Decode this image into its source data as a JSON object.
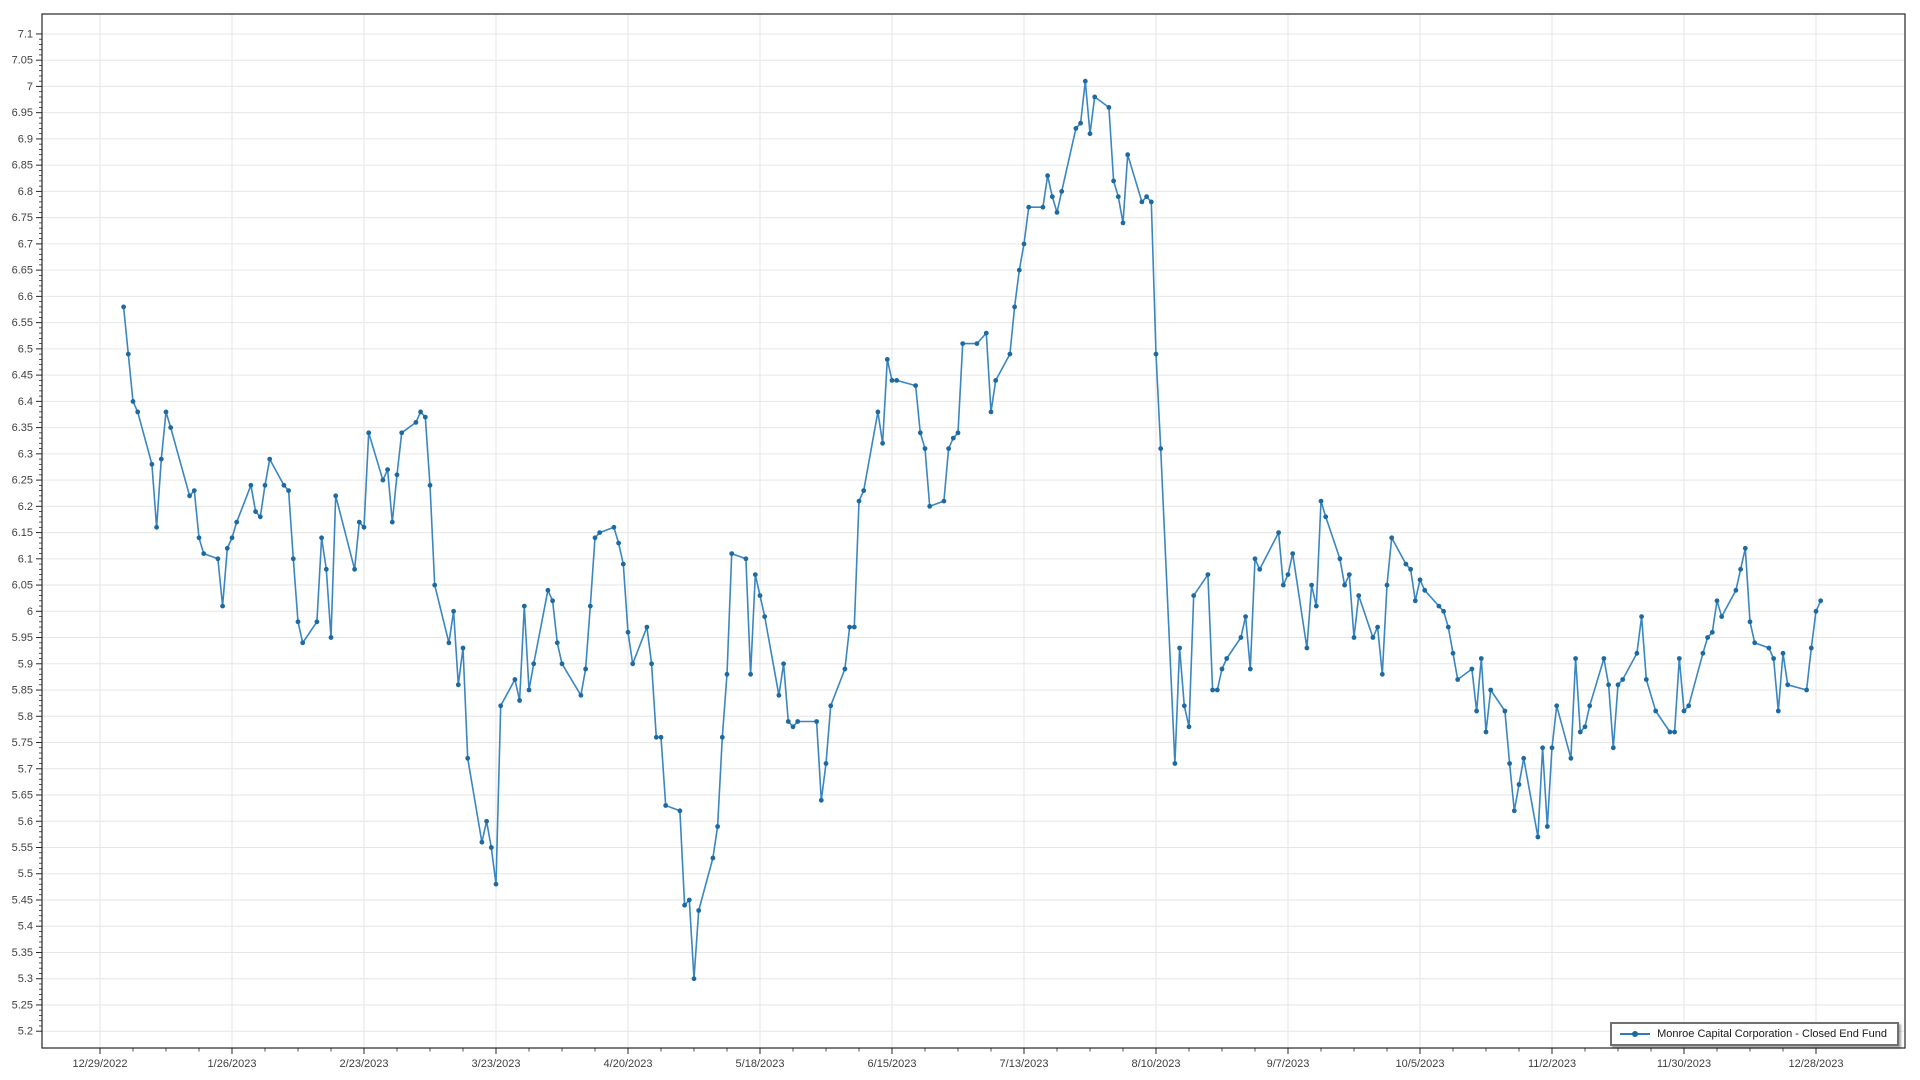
{
  "chart_data": {
    "type": "line",
    "title": "",
    "xlabel": "",
    "ylabel": "",
    "grid": true,
    "y_axis": {
      "tick_min": 5.2,
      "tick_max": 7.1,
      "tick_step": 0.05,
      "view_min": 5.168,
      "view_max": 7.138
    },
    "x_axis": {
      "origin_date": "2022-12-29",
      "tick_interval_days": 28,
      "minor_tick_interval_days": 7,
      "tick_labels": [
        "12/29/2022",
        "1/26/2023",
        "2/23/2023",
        "3/23/2023",
        "4/20/2023",
        "5/18/2023",
        "6/15/2023",
        "7/13/2023",
        "8/10/2023",
        "9/7/2023",
        "10/5/2023",
        "11/2/2023",
        "11/30/2023",
        "12/28/2023"
      ]
    },
    "legend": {
      "position": "bottom-right",
      "entries": [
        {
          "label": "Monroe Capital Corporation - Closed End Fund",
          "color": "#2e7cb8"
        }
      ]
    },
    "series": [
      {
        "name": "Monroe Capital Corporation - Closed End Fund",
        "line_color": "#3a86c2",
        "marker_color": "#1c6aa2",
        "points": [
          [
            "2023-01-03",
            6.58
          ],
          [
            "2023-01-04",
            6.49
          ],
          [
            "2023-01-05",
            6.4
          ],
          [
            "2023-01-06",
            6.38
          ],
          [
            "2023-01-09",
            6.28
          ],
          [
            "2023-01-10",
            6.16
          ],
          [
            "2023-01-11",
            6.29
          ],
          [
            "2023-01-12",
            6.38
          ],
          [
            "2023-01-13",
            6.35
          ],
          [
            "2023-01-17",
            6.22
          ],
          [
            "2023-01-18",
            6.23
          ],
          [
            "2023-01-19",
            6.14
          ],
          [
            "2023-01-20",
            6.11
          ],
          [
            "2023-01-23",
            6.1
          ],
          [
            "2023-01-24",
            6.01
          ],
          [
            "2023-01-25",
            6.12
          ],
          [
            "2023-01-26",
            6.14
          ],
          [
            "2023-01-27",
            6.17
          ],
          [
            "2023-01-30",
            6.24
          ],
          [
            "2023-01-31",
            6.19
          ],
          [
            "2023-02-01",
            6.18
          ],
          [
            "2023-02-02",
            6.24
          ],
          [
            "2023-02-03",
            6.29
          ],
          [
            "2023-02-06",
            6.24
          ],
          [
            "2023-02-07",
            6.23
          ],
          [
            "2023-02-08",
            6.1
          ],
          [
            "2023-02-09",
            5.98
          ],
          [
            "2023-02-10",
            5.94
          ],
          [
            "2023-02-13",
            5.98
          ],
          [
            "2023-02-14",
            6.14
          ],
          [
            "2023-02-15",
            6.08
          ],
          [
            "2023-02-16",
            5.95
          ],
          [
            "2023-02-17",
            6.22
          ],
          [
            "2023-02-21",
            6.08
          ],
          [
            "2023-02-22",
            6.17
          ],
          [
            "2023-02-23",
            6.16
          ],
          [
            "2023-02-24",
            6.34
          ],
          [
            "2023-02-27",
            6.25
          ],
          [
            "2023-02-28",
            6.27
          ],
          [
            "2023-03-01",
            6.17
          ],
          [
            "2023-03-02",
            6.26
          ],
          [
            "2023-03-03",
            6.34
          ],
          [
            "2023-03-06",
            6.36
          ],
          [
            "2023-03-07",
            6.38
          ],
          [
            "2023-03-08",
            6.37
          ],
          [
            "2023-03-09",
            6.24
          ],
          [
            "2023-03-10",
            6.05
          ],
          [
            "2023-03-13",
            5.94
          ],
          [
            "2023-03-14",
            6.0
          ],
          [
            "2023-03-15",
            5.86
          ],
          [
            "2023-03-16",
            5.93
          ],
          [
            "2023-03-17",
            5.72
          ],
          [
            "2023-03-20",
            5.56
          ],
          [
            "2023-03-21",
            5.6
          ],
          [
            "2023-03-22",
            5.55
          ],
          [
            "2023-03-23",
            5.48
          ],
          [
            "2023-03-24",
            5.82
          ],
          [
            "2023-03-27",
            5.87
          ],
          [
            "2023-03-28",
            5.83
          ],
          [
            "2023-03-29",
            6.01
          ],
          [
            "2023-03-30",
            5.85
          ],
          [
            "2023-03-31",
            5.9
          ],
          [
            "2023-04-03",
            6.04
          ],
          [
            "2023-04-04",
            6.02
          ],
          [
            "2023-04-05",
            5.94
          ],
          [
            "2023-04-06",
            5.9
          ],
          [
            "2023-04-10",
            5.84
          ],
          [
            "2023-04-11",
            5.89
          ],
          [
            "2023-04-12",
            6.01
          ],
          [
            "2023-04-13",
            6.14
          ],
          [
            "2023-04-14",
            6.15
          ],
          [
            "2023-04-17",
            6.16
          ],
          [
            "2023-04-18",
            6.13
          ],
          [
            "2023-04-19",
            6.09
          ],
          [
            "2023-04-20",
            5.96
          ],
          [
            "2023-04-21",
            5.9
          ],
          [
            "2023-04-24",
            5.97
          ],
          [
            "2023-04-25",
            5.9
          ],
          [
            "2023-04-26",
            5.76
          ],
          [
            "2023-04-27",
            5.76
          ],
          [
            "2023-04-28",
            5.63
          ],
          [
            "2023-05-01",
            5.62
          ],
          [
            "2023-05-02",
            5.44
          ],
          [
            "2023-05-03",
            5.45
          ],
          [
            "2023-05-04",
            5.3
          ],
          [
            "2023-05-05",
            5.43
          ],
          [
            "2023-05-08",
            5.53
          ],
          [
            "2023-05-09",
            5.59
          ],
          [
            "2023-05-10",
            5.76
          ],
          [
            "2023-05-11",
            5.88
          ],
          [
            "2023-05-12",
            6.11
          ],
          [
            "2023-05-15",
            6.1
          ],
          [
            "2023-05-16",
            5.88
          ],
          [
            "2023-05-17",
            6.07
          ],
          [
            "2023-05-18",
            6.03
          ],
          [
            "2023-05-19",
            5.99
          ],
          [
            "2023-05-22",
            5.84
          ],
          [
            "2023-05-23",
            5.9
          ],
          [
            "2023-05-24",
            5.79
          ],
          [
            "2023-05-25",
            5.78
          ],
          [
            "2023-05-26",
            5.79
          ],
          [
            "2023-05-30",
            5.79
          ],
          [
            "2023-05-31",
            5.64
          ],
          [
            "2023-06-01",
            5.71
          ],
          [
            "2023-06-02",
            5.82
          ],
          [
            "2023-06-05",
            5.89
          ],
          [
            "2023-06-06",
            5.97
          ],
          [
            "2023-06-07",
            5.97
          ],
          [
            "2023-06-08",
            6.21
          ],
          [
            "2023-06-09",
            6.23
          ],
          [
            "2023-06-12",
            6.38
          ],
          [
            "2023-06-13",
            6.32
          ],
          [
            "2023-06-14",
            6.48
          ],
          [
            "2023-06-15",
            6.44
          ],
          [
            "2023-06-16",
            6.44
          ],
          [
            "2023-06-20",
            6.43
          ],
          [
            "2023-06-21",
            6.34
          ],
          [
            "2023-06-22",
            6.31
          ],
          [
            "2023-06-23",
            6.2
          ],
          [
            "2023-06-26",
            6.21
          ],
          [
            "2023-06-27",
            6.31
          ],
          [
            "2023-06-28",
            6.33
          ],
          [
            "2023-06-29",
            6.34
          ],
          [
            "2023-06-30",
            6.51
          ],
          [
            "2023-07-03",
            6.51
          ],
          [
            "2023-07-05",
            6.53
          ],
          [
            "2023-07-06",
            6.38
          ],
          [
            "2023-07-07",
            6.44
          ],
          [
            "2023-07-10",
            6.49
          ],
          [
            "2023-07-11",
            6.58
          ],
          [
            "2023-07-12",
            6.65
          ],
          [
            "2023-07-13",
            6.7
          ],
          [
            "2023-07-14",
            6.77
          ],
          [
            "2023-07-17",
            6.77
          ],
          [
            "2023-07-18",
            6.83
          ],
          [
            "2023-07-19",
            6.79
          ],
          [
            "2023-07-20",
            6.76
          ],
          [
            "2023-07-21",
            6.8
          ],
          [
            "2023-07-24",
            6.92
          ],
          [
            "2023-07-25",
            6.93
          ],
          [
            "2023-07-26",
            7.01
          ],
          [
            "2023-07-27",
            6.91
          ],
          [
            "2023-07-28",
            6.98
          ],
          [
            "2023-07-31",
            6.96
          ],
          [
            "2023-08-01",
            6.82
          ],
          [
            "2023-08-02",
            6.79
          ],
          [
            "2023-08-03",
            6.74
          ],
          [
            "2023-08-04",
            6.87
          ],
          [
            "2023-08-07",
            6.78
          ],
          [
            "2023-08-08",
            6.79
          ],
          [
            "2023-08-09",
            6.78
          ],
          [
            "2023-08-10",
            6.49
          ],
          [
            "2023-08-11",
            6.31
          ],
          [
            "2023-08-14",
            5.71
          ],
          [
            "2023-08-15",
            5.93
          ],
          [
            "2023-08-16",
            5.82
          ],
          [
            "2023-08-17",
            5.78
          ],
          [
            "2023-08-18",
            6.03
          ],
          [
            "2023-08-21",
            6.07
          ],
          [
            "2023-08-22",
            5.85
          ],
          [
            "2023-08-23",
            5.85
          ],
          [
            "2023-08-24",
            5.89
          ],
          [
            "2023-08-25",
            5.91
          ],
          [
            "2023-08-28",
            5.95
          ],
          [
            "2023-08-29",
            5.99
          ],
          [
            "2023-08-30",
            5.89
          ],
          [
            "2023-08-31",
            6.1
          ],
          [
            "2023-09-01",
            6.08
          ],
          [
            "2023-09-05",
            6.15
          ],
          [
            "2023-09-06",
            6.05
          ],
          [
            "2023-09-07",
            6.07
          ],
          [
            "2023-09-08",
            6.11
          ],
          [
            "2023-09-11",
            5.93
          ],
          [
            "2023-09-12",
            6.05
          ],
          [
            "2023-09-13",
            6.01
          ],
          [
            "2023-09-14",
            6.21
          ],
          [
            "2023-09-15",
            6.18
          ],
          [
            "2023-09-18",
            6.1
          ],
          [
            "2023-09-19",
            6.05
          ],
          [
            "2023-09-20",
            6.07
          ],
          [
            "2023-09-21",
            5.95
          ],
          [
            "2023-09-22",
            6.03
          ],
          [
            "2023-09-25",
            5.95
          ],
          [
            "2023-09-26",
            5.97
          ],
          [
            "2023-09-27",
            5.88
          ],
          [
            "2023-09-28",
            6.05
          ],
          [
            "2023-09-29",
            6.14
          ],
          [
            "2023-10-02",
            6.09
          ],
          [
            "2023-10-03",
            6.08
          ],
          [
            "2023-10-04",
            6.02
          ],
          [
            "2023-10-05",
            6.06
          ],
          [
            "2023-10-06",
            6.04
          ],
          [
            "2023-10-09",
            6.01
          ],
          [
            "2023-10-10",
            6.0
          ],
          [
            "2023-10-11",
            5.97
          ],
          [
            "2023-10-12",
            5.92
          ],
          [
            "2023-10-13",
            5.87
          ],
          [
            "2023-10-16",
            5.89
          ],
          [
            "2023-10-17",
            5.81
          ],
          [
            "2023-10-18",
            5.91
          ],
          [
            "2023-10-19",
            5.77
          ],
          [
            "2023-10-20",
            5.85
          ],
          [
            "2023-10-23",
            5.81
          ],
          [
            "2023-10-24",
            5.71
          ],
          [
            "2023-10-25",
            5.62
          ],
          [
            "2023-10-26",
            5.67
          ],
          [
            "2023-10-27",
            5.72
          ],
          [
            "2023-10-30",
            5.57
          ],
          [
            "2023-10-31",
            5.74
          ],
          [
            "2023-11-01",
            5.59
          ],
          [
            "2023-11-02",
            5.74
          ],
          [
            "2023-11-03",
            5.82
          ],
          [
            "2023-11-06",
            5.72
          ],
          [
            "2023-11-07",
            5.91
          ],
          [
            "2023-11-08",
            5.77
          ],
          [
            "2023-11-09",
            5.78
          ],
          [
            "2023-11-10",
            5.82
          ],
          [
            "2023-11-13",
            5.91
          ],
          [
            "2023-11-14",
            5.86
          ],
          [
            "2023-11-15",
            5.74
          ],
          [
            "2023-11-16",
            5.86
          ],
          [
            "2023-11-17",
            5.87
          ],
          [
            "2023-11-20",
            5.92
          ],
          [
            "2023-11-21",
            5.99
          ],
          [
            "2023-11-22",
            5.87
          ],
          [
            "2023-11-24",
            5.81
          ],
          [
            "2023-11-27",
            5.77
          ],
          [
            "2023-11-28",
            5.77
          ],
          [
            "2023-11-29",
            5.91
          ],
          [
            "2023-11-30",
            5.81
          ],
          [
            "2023-12-01",
            5.82
          ],
          [
            "2023-12-04",
            5.92
          ],
          [
            "2023-12-05",
            5.95
          ],
          [
            "2023-12-06",
            5.96
          ],
          [
            "2023-12-07",
            6.02
          ],
          [
            "2023-12-08",
            5.99
          ],
          [
            "2023-12-11",
            6.04
          ],
          [
            "2023-12-12",
            6.08
          ],
          [
            "2023-12-13",
            6.12
          ],
          [
            "2023-12-14",
            5.98
          ],
          [
            "2023-12-15",
            5.94
          ],
          [
            "2023-12-18",
            5.93
          ],
          [
            "2023-12-19",
            5.91
          ],
          [
            "2023-12-20",
            5.81
          ],
          [
            "2023-12-21",
            5.92
          ],
          [
            "2023-12-22",
            5.86
          ],
          [
            "2023-12-26",
            5.85
          ],
          [
            "2023-12-27",
            5.93
          ],
          [
            "2023-12-28",
            6.0
          ],
          [
            "2023-12-29",
            6.02
          ]
        ]
      }
    ],
    "colors": {
      "background": "#ffffff",
      "grid": "#e6e6e6",
      "axis": "#262626",
      "tick": "#262626",
      "label_text": "#3f3f3f",
      "legend_border": "#6f6f6f"
    }
  }
}
